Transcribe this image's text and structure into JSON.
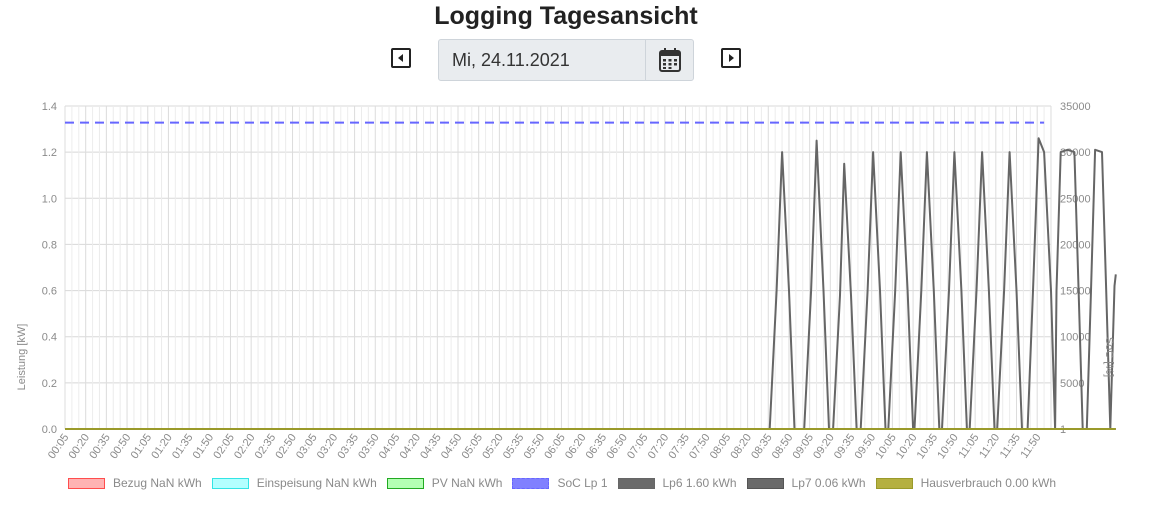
{
  "header": {
    "title": "Logging Tagesansicht"
  },
  "date_picker": {
    "value": "Mi, 24.11.2021"
  },
  "icons": {
    "prev": "caret-left-square-icon",
    "next": "caret-right-square-icon",
    "calendar": "calendar-icon"
  },
  "chart_data": {
    "type": "line",
    "title": "",
    "ylabel": "Leistung [kW]",
    "y2label": "SoC [%]",
    "ylim": [
      0,
      1.4
    ],
    "y_ticks": [
      "0.0",
      "0.2",
      "0.4",
      "0.6",
      "0.8",
      "1.0",
      "1.2",
      "1.4"
    ],
    "y2lim": [
      1,
      35000
    ],
    "y2_ticks": [
      "1",
      "5000",
      "10000",
      "15000",
      "20000",
      "25000",
      "30000",
      "35000"
    ],
    "x_ticks": [
      "00:05",
      "00:20",
      "00:35",
      "00:50",
      "01:05",
      "01:20",
      "01:35",
      "01:50",
      "02:05",
      "02:20",
      "02:35",
      "02:50",
      "03:05",
      "03:20",
      "03:35",
      "03:50",
      "04:05",
      "04:20",
      "04:35",
      "04:50",
      "05:05",
      "05:20",
      "05:35",
      "05:50",
      "06:05",
      "06:20",
      "06:35",
      "06:50",
      "07:05",
      "07:20",
      "07:35",
      "07:50",
      "08:05",
      "08:20",
      "08:35",
      "08:50",
      "09:05",
      "09:20",
      "09:35",
      "09:50",
      "10:05",
      "10:20",
      "10:35",
      "10:50",
      "11:05",
      "11:20",
      "11:35",
      "11:50"
    ],
    "grid": true,
    "legend_position": "bottom",
    "series": [
      {
        "name": "Bezug NaN kWh",
        "color": "#ff4d4d",
        "fill": "#ffb3b3",
        "axis": "left",
        "values": [
          [
            0.083,
            0
          ],
          [
            11.917,
            0
          ]
        ]
      },
      {
        "name": "Einspeisung NaN kWh",
        "color": "#33e5e5",
        "fill": "#b3ffff",
        "axis": "left",
        "values": [
          [
            0.083,
            0
          ],
          [
            11.917,
            0
          ]
        ]
      },
      {
        "name": "PV NaN kWh",
        "color": "#22aa22",
        "fill": "#b3ffb3",
        "axis": "left",
        "values": [
          [
            0.083,
            0
          ],
          [
            11.917,
            0
          ]
        ]
      },
      {
        "name": "SoC Lp 1",
        "color": "#6666ff",
        "fill": "#8080ff",
        "dashed": true,
        "axis": "right",
        "values": [
          [
            0.083,
            33200
          ],
          [
            11.917,
            33200
          ]
        ]
      },
      {
        "name": "Lp6 1.60 kWh",
        "color": "#666666",
        "fill": "#6a6a6a",
        "axis": "left",
        "values": [
          [
            0.083,
            0
          ],
          [
            8.6,
            0
          ],
          [
            8.683,
            0.6
          ],
          [
            8.75,
            1.2
          ],
          [
            8.833,
            0.6
          ],
          [
            8.9,
            0
          ],
          [
            9.017,
            0
          ],
          [
            9.1,
            0.6
          ],
          [
            9.167,
            1.25
          ],
          [
            9.25,
            0.6
          ],
          [
            9.317,
            0
          ],
          [
            9.367,
            0
          ],
          [
            9.45,
            0.58
          ],
          [
            9.5,
            1.15
          ],
          [
            9.583,
            0.58
          ],
          [
            9.65,
            0
          ],
          [
            9.7,
            0
          ],
          [
            9.783,
            0.6
          ],
          [
            9.85,
            1.2
          ],
          [
            9.933,
            0.6
          ],
          [
            10.0,
            0
          ],
          [
            10.033,
            0
          ],
          [
            10.117,
            0.6
          ],
          [
            10.183,
            1.2
          ],
          [
            10.267,
            0.6
          ],
          [
            10.333,
            0
          ],
          [
            10.35,
            0
          ],
          [
            10.433,
            0.6
          ],
          [
            10.5,
            1.2
          ],
          [
            10.583,
            0.6
          ],
          [
            10.65,
            0
          ],
          [
            10.683,
            0
          ],
          [
            10.767,
            0.6
          ],
          [
            10.833,
            1.2
          ],
          [
            10.917,
            0.6
          ],
          [
            10.983,
            0
          ],
          [
            11.017,
            0
          ],
          [
            11.1,
            0.6
          ],
          [
            11.167,
            1.2
          ],
          [
            11.25,
            0.6
          ],
          [
            11.317,
            0
          ],
          [
            11.35,
            0
          ],
          [
            11.433,
            0.6
          ],
          [
            11.5,
            1.2
          ],
          [
            11.583,
            0.6
          ],
          [
            11.65,
            0
          ],
          [
            11.717,
            0
          ],
          [
            11.783,
            0.6
          ],
          [
            11.85,
            1.26
          ],
          [
            11.917,
            1.2
          ],
          [
            12.0,
            0.6
          ],
          [
            12.05,
            0
          ],
          [
            12.067,
            0.6
          ],
          [
            12.117,
            1.2
          ],
          [
            12.2,
            1.21
          ],
          [
            12.283,
            1.2
          ],
          [
            12.333,
            0.6
          ],
          [
            12.383,
            0
          ],
          [
            12.433,
            0
          ],
          [
            12.483,
            0.6
          ],
          [
            12.533,
            1.21
          ],
          [
            12.617,
            1.2
          ],
          [
            12.667,
            0.6
          ],
          [
            12.717,
            0
          ],
          [
            12.767,
            0.62
          ],
          [
            12.783,
            0.67
          ]
        ]
      },
      {
        "name": "Lp7 0.06 kWh",
        "color": "#555555",
        "fill": "#6a6a6a",
        "axis": "left",
        "values": [
          [
            0.083,
            0
          ],
          [
            12.783,
            0
          ]
        ]
      },
      {
        "name": "Hausverbrauch 0.00 kWh",
        "color": "#9a9a2a",
        "fill": "#b5b040",
        "axis": "left",
        "values": [
          [
            0.083,
            0
          ],
          [
            12.783,
            0
          ]
        ]
      }
    ]
  }
}
